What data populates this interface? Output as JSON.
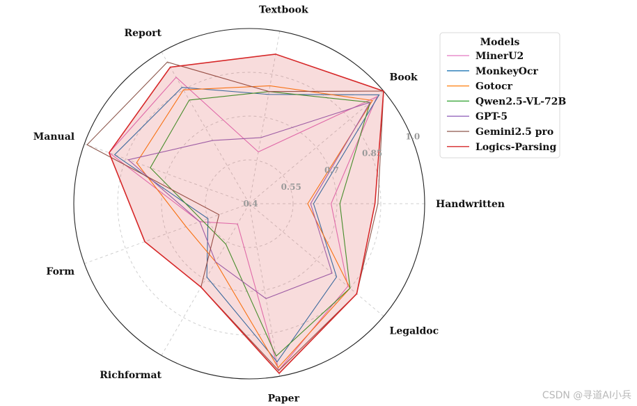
{
  "chart_data": {
    "type": "radar",
    "axes": [
      "Handwritten",
      "Book",
      "Textbook",
      "Report",
      "Manual",
      "Form",
      "Richformat",
      "Paper",
      "Legaldoc"
    ],
    "r_range": [
      0.4,
      1.0
    ],
    "r_ticks": [
      0.4,
      0.55,
      0.7,
      0.85,
      1.0
    ],
    "tick_labels": [
      "0.4",
      "0.55",
      "0.7",
      "0.85",
      "1.0"
    ],
    "grid": true,
    "legend_title": "Models",
    "legend_position": "top-right",
    "series": [
      {
        "name": "MinerU2",
        "color": "#e377c2",
        "values": [
          0.68,
          0.97,
          0.58,
          0.9,
          0.91,
          0.58,
          0.48,
          0.98,
          0.84
        ]
      },
      {
        "name": "MonkeyOcr",
        "color": "#1f77b4",
        "values": [
          0.62,
          0.98,
          0.78,
          0.86,
          0.89,
          0.55,
          0.69,
          0.95,
          0.79
        ]
      },
      {
        "name": "Gotocr",
        "color": "#ff7f0e",
        "values": [
          0.6,
          0.95,
          0.81,
          0.85,
          0.81,
          0.63,
          0.63,
          0.97,
          0.85
        ]
      },
      {
        "name": "Qwen2.5-VL-72B",
        "color": "#2ca02c",
        "values": [
          0.71,
          0.94,
          0.79,
          0.81,
          0.76,
          0.57,
          0.56,
          0.93,
          0.85
        ]
      },
      {
        "name": "GPT-5",
        "color": "#9467bd",
        "values": [
          0.61,
          0.94,
          0.63,
          0.65,
          0.84,
          0.58,
          0.63,
          0.73,
          0.77
        ]
      },
      {
        "name": "Gemini2.5 pro",
        "color": "#8c564b",
        "values": [
          0.84,
          1.0,
          0.79,
          0.96,
          0.99,
          0.51,
          0.73,
          0.98,
          0.88
        ]
      },
      {
        "name": "Logics-Parsing",
        "color": "#d62728",
        "fill": "rgba(214,39,40,0.16)",
        "values": [
          0.83,
          1.0,
          0.92,
          0.94,
          0.91,
          0.78,
          0.73,
          0.99,
          0.88
        ]
      }
    ]
  },
  "watermark": "CSDN @寻道AI小兵"
}
